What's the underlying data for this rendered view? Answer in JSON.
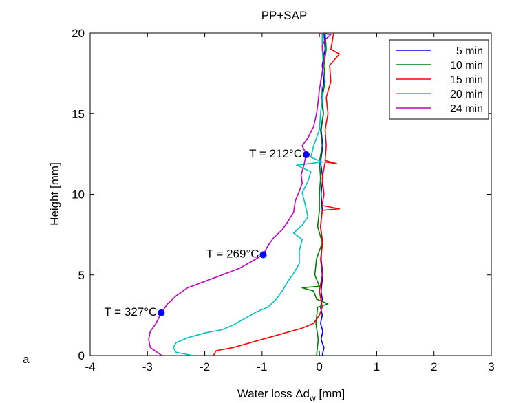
{
  "panel_label": "a",
  "chart_data": {
    "type": "line",
    "title": "PP+SAP",
    "xlabel": "Water loss Δd",
    "xlabel_sub": "w",
    "xlabel_unit": " [mm]",
    "ylabel": "Height [mm]",
    "xlim": [
      -4,
      3
    ],
    "ylim": [
      0,
      20
    ],
    "xticks": [
      -4,
      -3,
      -2,
      -1,
      0,
      1,
      2,
      3
    ],
    "yticks": [
      0,
      5,
      10,
      15,
      20
    ],
    "grid": false,
    "legend_position": "top-right",
    "series": [
      {
        "name": "5 min",
        "color": "#0000ff",
        "points": [
          [
            0.05,
            0
          ],
          [
            0.08,
            0.5
          ],
          [
            0.03,
            1
          ],
          [
            0.06,
            1.5
          ],
          [
            0.02,
            2
          ],
          [
            0.05,
            2.5
          ],
          [
            0.02,
            3
          ],
          [
            0.05,
            3.5
          ],
          [
            0.03,
            4
          ],
          [
            0.06,
            5
          ],
          [
            0.03,
            6
          ],
          [
            0.05,
            7
          ],
          [
            0.02,
            8
          ],
          [
            0.05,
            9
          ],
          [
            0.03,
            10
          ],
          [
            0.06,
            11
          ],
          [
            0.02,
            12
          ],
          [
            0.06,
            13
          ],
          [
            0.03,
            14
          ],
          [
            0.07,
            15
          ],
          [
            0.03,
            16
          ],
          [
            0.08,
            17
          ],
          [
            0.05,
            18
          ],
          [
            0.1,
            19
          ],
          [
            0.08,
            20
          ]
        ]
      },
      {
        "name": "10 min",
        "color": "#008000",
        "points": [
          [
            -0.05,
            0
          ],
          [
            -0.02,
            1
          ],
          [
            -0.06,
            2
          ],
          [
            -0.03,
            3
          ],
          [
            0.15,
            3.2
          ],
          [
            -0.05,
            3.5
          ],
          [
            -0.1,
            4
          ],
          [
            -0.3,
            4.2
          ],
          [
            0.0,
            4.3
          ],
          [
            -0.08,
            5
          ],
          [
            -0.05,
            6
          ],
          [
            0.05,
            7
          ],
          [
            -0.03,
            8
          ],
          [
            0.0,
            9
          ],
          [
            0.0,
            10
          ],
          [
            0.02,
            11
          ],
          [
            0.0,
            12
          ],
          [
            0.05,
            13
          ],
          [
            0.02,
            14
          ],
          [
            0.07,
            15
          ],
          [
            0.05,
            16
          ],
          [
            0.1,
            17
          ],
          [
            0.08,
            18
          ],
          [
            0.12,
            19
          ],
          [
            0.1,
            20
          ]
        ]
      },
      {
        "name": "15 min",
        "color": "#ff0000",
        "points": [
          [
            -1.85,
            0
          ],
          [
            -1.8,
            0.3
          ],
          [
            -1.5,
            0.5
          ],
          [
            -1.2,
            0.8
          ],
          [
            -0.9,
            1.1
          ],
          [
            -0.6,
            1.4
          ],
          [
            -0.3,
            1.7
          ],
          [
            -0.1,
            2
          ],
          [
            0.0,
            2.5
          ],
          [
            0.05,
            3
          ],
          [
            0.0,
            4
          ],
          [
            0.05,
            5
          ],
          [
            0.02,
            6
          ],
          [
            0.06,
            7
          ],
          [
            0.02,
            8
          ],
          [
            0.05,
            9
          ],
          [
            0.35,
            9.1
          ],
          [
            0.05,
            9.3
          ],
          [
            0.08,
            10
          ],
          [
            0.05,
            11
          ],
          [
            0.1,
            12
          ],
          [
            0.3,
            11.9
          ],
          [
            0.1,
            12.1
          ],
          [
            0.12,
            13
          ],
          [
            0.1,
            14
          ],
          [
            0.15,
            15
          ],
          [
            0.12,
            16
          ],
          [
            0.2,
            17
          ],
          [
            0.18,
            18
          ],
          [
            0.35,
            18.7
          ],
          [
            0.2,
            19
          ],
          [
            0.25,
            20
          ]
        ]
      },
      {
        "name": "20 min",
        "color": "#00c0c0",
        "points": [
          [
            -2.2,
            0
          ],
          [
            -2.5,
            0.2
          ],
          [
            -2.55,
            0.5
          ],
          [
            -2.5,
            0.8
          ],
          [
            -2.3,
            1.1
          ],
          [
            -2.0,
            1.4
          ],
          [
            -1.7,
            1.6
          ],
          [
            -1.5,
            1.9
          ],
          [
            -1.3,
            2.3
          ],
          [
            -1.1,
            2.7
          ],
          [
            -0.9,
            3.0
          ],
          [
            -0.75,
            3.5
          ],
          [
            -0.65,
            4
          ],
          [
            -0.55,
            4.6
          ],
          [
            -0.45,
            5.1
          ],
          [
            -0.35,
            5.7
          ],
          [
            -0.35,
            6.5
          ],
          [
            -0.3,
            7.2
          ],
          [
            -0.45,
            7.6
          ],
          [
            -0.3,
            8.1
          ],
          [
            -0.2,
            8.6
          ],
          [
            -0.25,
            9.4
          ],
          [
            -0.3,
            10.1
          ],
          [
            -0.2,
            10.8
          ],
          [
            -0.15,
            11.4
          ],
          [
            -0.4,
            11.8
          ],
          [
            0.05,
            12.0
          ],
          [
            -0.15,
            12.3
          ],
          [
            -0.1,
            13
          ],
          [
            0.0,
            14
          ],
          [
            0.02,
            15
          ],
          [
            0.05,
            16
          ],
          [
            0.02,
            17
          ],
          [
            0.07,
            18
          ],
          [
            0.05,
            19
          ],
          [
            0.05,
            20
          ]
        ]
      },
      {
        "name": "24 min",
        "color": "#c000c0",
        "points": [
          [
            -2.75,
            0
          ],
          [
            -2.95,
            0.5
          ],
          [
            -2.98,
            1.0
          ],
          [
            -2.95,
            1.5
          ],
          [
            -2.85,
            2.0
          ],
          [
            -2.76,
            2.65
          ],
          [
            -2.65,
            3.2
          ],
          [
            -2.5,
            3.7
          ],
          [
            -2.3,
            4.2
          ],
          [
            -2.0,
            4.6
          ],
          [
            -1.7,
            5.0
          ],
          [
            -1.4,
            5.4
          ],
          [
            -1.2,
            5.8
          ],
          [
            -0.98,
            6.25
          ],
          [
            -0.9,
            6.8
          ],
          [
            -0.8,
            7.3
          ],
          [
            -0.65,
            7.8
          ],
          [
            -0.55,
            8.3
          ],
          [
            -0.45,
            8.9
          ],
          [
            -0.42,
            9.6
          ],
          [
            -0.35,
            10.2
          ],
          [
            -0.3,
            10.7
          ],
          [
            -0.32,
            11.2
          ],
          [
            -0.27,
            11.8
          ],
          [
            -0.23,
            12.5
          ],
          [
            -0.3,
            13.0
          ],
          [
            -0.2,
            13.5
          ],
          [
            -0.1,
            14.2
          ],
          [
            -0.05,
            15.0
          ],
          [
            -0.02,
            15.8
          ],
          [
            0.0,
            16.5
          ],
          [
            0.05,
            17.5
          ],
          [
            0.08,
            18.5
          ],
          [
            0.05,
            19.2
          ],
          [
            0.1,
            19.6
          ],
          [
            0.2,
            19.9
          ],
          [
            0.0,
            20
          ]
        ]
      }
    ],
    "markers": [
      {
        "x": -0.23,
        "y": 12.45,
        "label": "T = 212°C",
        "color": "#0000ff"
      },
      {
        "x": -0.98,
        "y": 6.25,
        "label": "T = 269°C",
        "color": "#0000ff"
      },
      {
        "x": -2.76,
        "y": 2.65,
        "label": "T = 327°C",
        "color": "#0000ff"
      }
    ]
  }
}
